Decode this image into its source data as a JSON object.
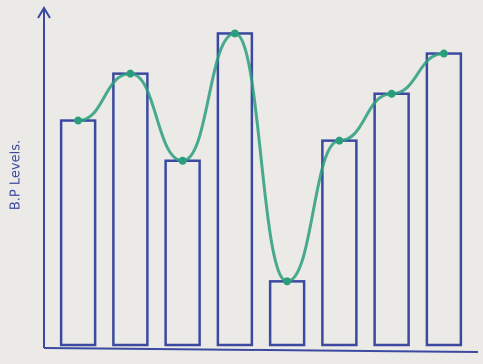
{
  "chart_data": {
    "type": "bar",
    "y_label": "B.P Levels.",
    "categories": [
      null,
      null,
      null,
      null,
      null,
      null,
      null,
      null
    ],
    "values": [
      67,
      81,
      55,
      93,
      19,
      61,
      75,
      87
    ],
    "color": "#3b4aa0",
    "line_color": "#2a9d7c",
    "ylim": [
      0,
      100
    ]
  }
}
